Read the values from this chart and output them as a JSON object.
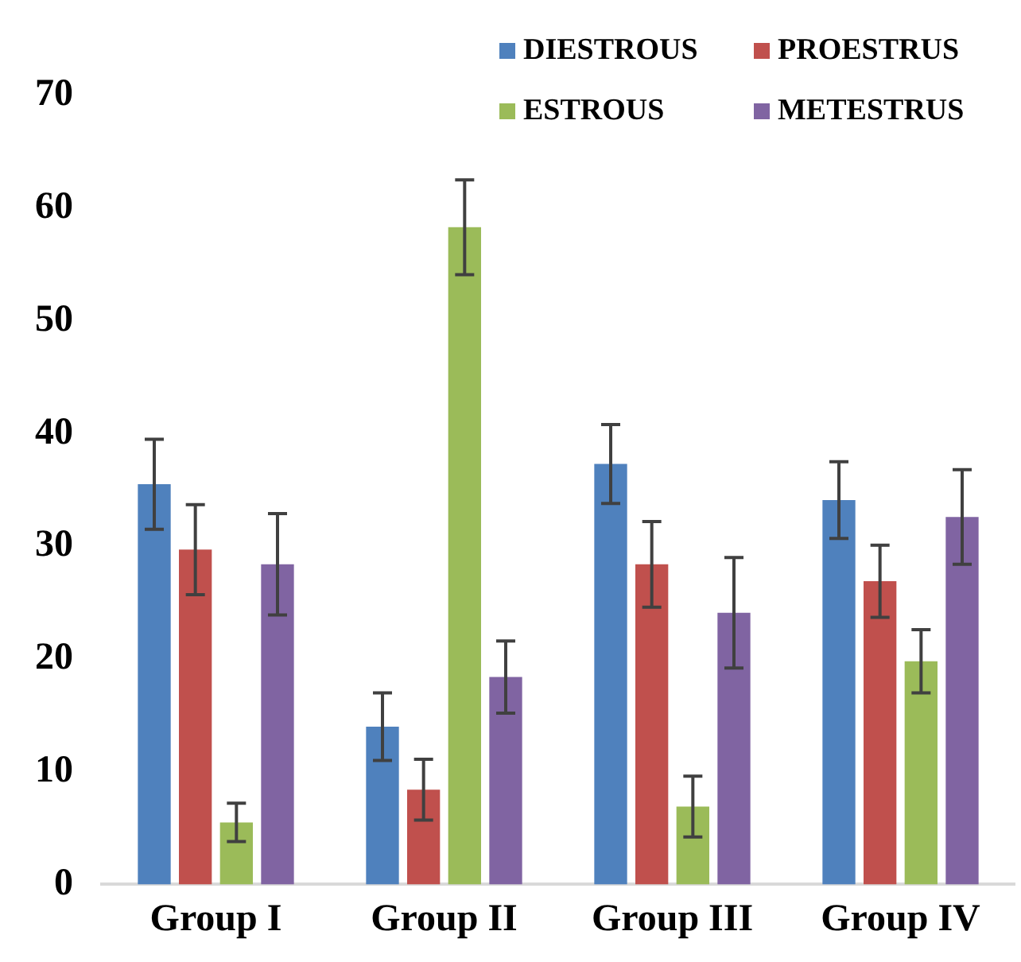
{
  "chart_data": {
    "type": "bar",
    "categories": [
      "Group I",
      "Group II",
      "Group III",
      "Group IV"
    ],
    "series": [
      {
        "name": "DIESTROUS",
        "color": "#4f81bd",
        "values": [
          35.5,
          14.0,
          37.3,
          34.1
        ],
        "errors": [
          4.0,
          3.0,
          3.5,
          3.4
        ]
      },
      {
        "name": "PROESTRUS",
        "color": "#c0504d",
        "values": [
          29.7,
          8.4,
          28.4,
          26.9
        ],
        "errors": [
          4.0,
          2.7,
          3.8,
          3.2
        ]
      },
      {
        "name": "ESTROUS",
        "color": "#9bbb59",
        "values": [
          5.5,
          58.3,
          6.9,
          19.8
        ],
        "errors": [
          1.7,
          4.2,
          2.7,
          2.8
        ]
      },
      {
        "name": "METESTRUS",
        "color": "#8064a2",
        "values": [
          28.4,
          18.4,
          24.1,
          32.6
        ],
        "errors": [
          4.5,
          3.2,
          4.9,
          4.2
        ]
      }
    ],
    "ylim": [
      0,
      70
    ],
    "yticks": [
      0,
      10,
      20,
      30,
      40,
      50,
      60,
      70
    ],
    "grid": false,
    "legend": "top right"
  }
}
